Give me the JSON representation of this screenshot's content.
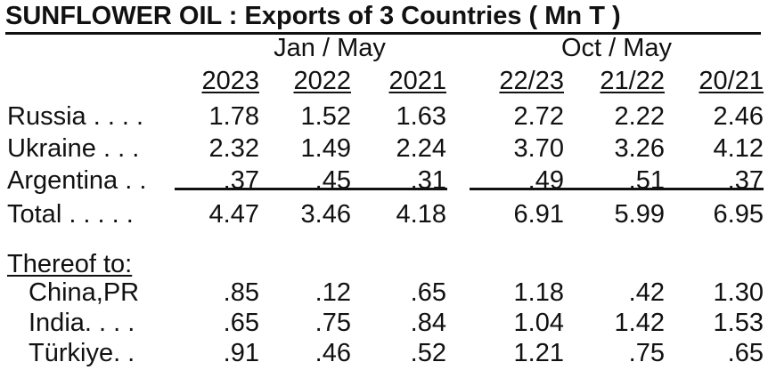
{
  "title": "SUNFLOWER OIL :  Exports of 3 Countries ( Mn T )",
  "groups": [
    "Jan / May",
    "Oct / May"
  ],
  "columns": [
    "2023",
    "2022",
    "2021",
    "22/23",
    "21/22",
    "20/21"
  ],
  "rows": [
    {
      "label": "Russia . . . .",
      "values": [
        "1.78",
        "1.52",
        "1.63",
        "2.72",
        "2.22",
        "2.46"
      ]
    },
    {
      "label": "Ukraine . . .",
      "values": [
        "2.32",
        "1.49",
        "2.24",
        "3.70",
        "3.26",
        "4.12"
      ]
    },
    {
      "label": "Argentina . .",
      "values": [
        ".37",
        ".45",
        ".31",
        ".49",
        ".51",
        ".37"
      ]
    },
    {
      "label": "Total . . . . .",
      "values": [
        "4.47",
        "3.46",
        "4.18",
        "6.91",
        "5.99",
        "6.95"
      ]
    }
  ],
  "thereof_label": "Thereof to:",
  "destinations": [
    {
      "label": "China,PR",
      "values": [
        ".85",
        ".12",
        ".65",
        "1.18",
        ".42",
        "1.30"
      ]
    },
    {
      "label": "India. . . .",
      "values": [
        ".65",
        ".75",
        ".84",
        "1.04",
        "1.42",
        "1.53"
      ]
    },
    {
      "label": "Türkiye. .",
      "values": [
        ".91",
        ".46",
        ".52",
        "1.21",
        ".75",
        ".65"
      ]
    }
  ]
}
